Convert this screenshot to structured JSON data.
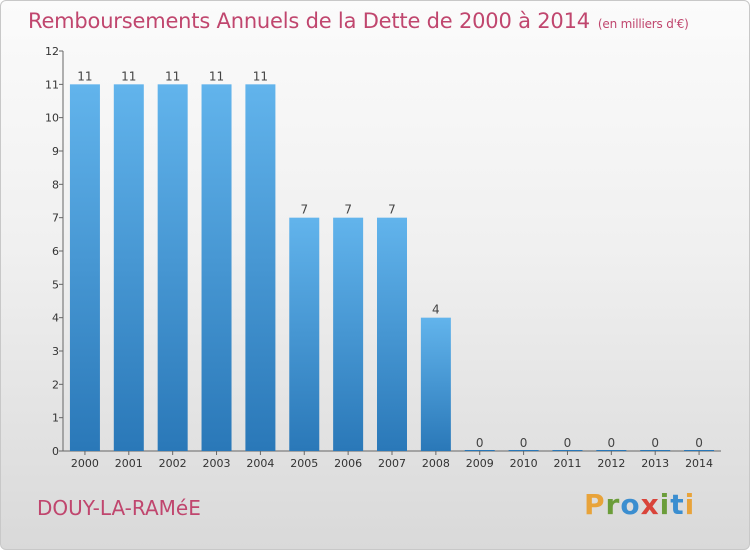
{
  "header": {
    "title": "Remboursements Annuels de la Dette de 2000 à 2014",
    "unit": "(en milliers d'€)"
  },
  "footer": {
    "commune": "DOUY-LA-RAMéE",
    "logo_text": "Proxiti"
  },
  "colors": {
    "title": "#c0466e",
    "bar_top": "#62b4ec",
    "bar_bottom": "#2a78b8",
    "logo_letters": [
      "#e8a33a",
      "#6b9d3a",
      "#3b8ed0",
      "#d9443a",
      "#6b9d3a",
      "#3b8ed0",
      "#e8a33a"
    ]
  },
  "chart_data": {
    "type": "bar",
    "title": "Remboursements Annuels de la Dette de 2000 à 2014",
    "ylabel": "",
    "xlabel": "",
    "ylim": [
      0,
      12
    ],
    "yticks": [
      0,
      1,
      2,
      3,
      4,
      5,
      6,
      7,
      8,
      9,
      10,
      11,
      12
    ],
    "grid": false,
    "categories": [
      "2000",
      "2001",
      "2002",
      "2003",
      "2004",
      "2005",
      "2006",
      "2007",
      "2008",
      "2009",
      "2010",
      "2011",
      "2012",
      "2013",
      "2014"
    ],
    "values": [
      11,
      11,
      11,
      11,
      11,
      7,
      7,
      7,
      4,
      0,
      0,
      0,
      0,
      0,
      0
    ]
  }
}
